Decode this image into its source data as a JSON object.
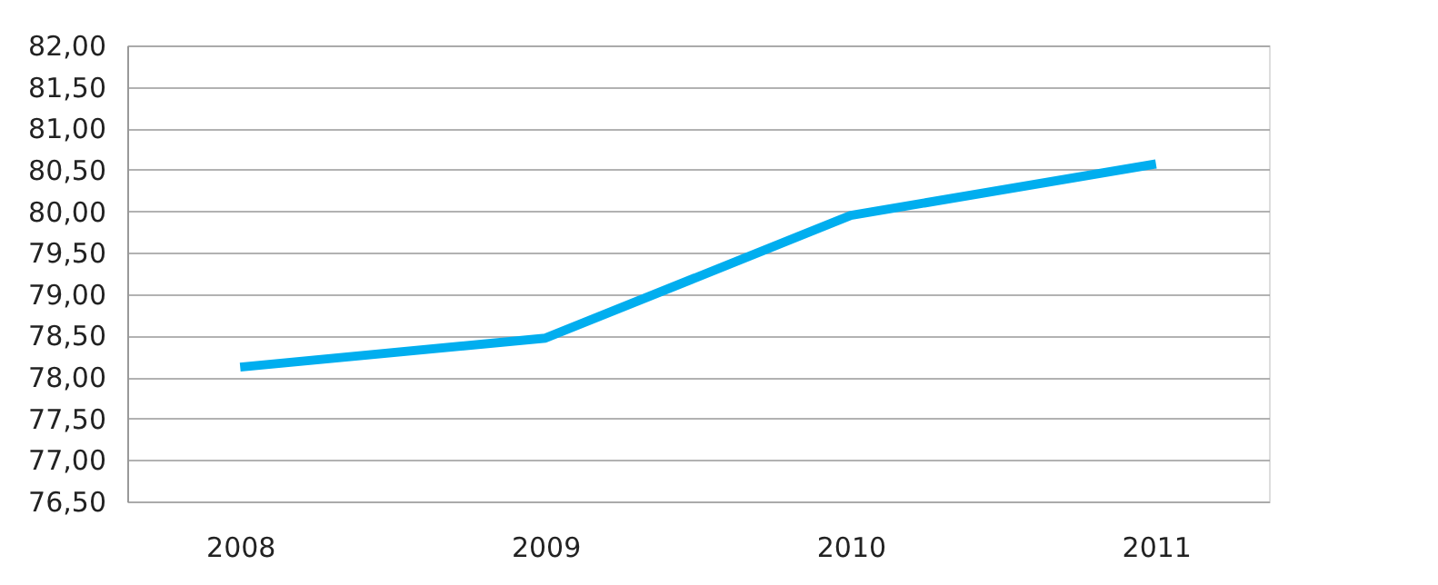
{
  "chart_data": {
    "type": "line",
    "categories": [
      "2008",
      "2009",
      "2010",
      "2011"
    ],
    "series": [
      {
        "color": "#00aeef",
        "values": [
          78.12,
          78.47,
          79.95,
          80.57
        ]
      }
    ],
    "ylim": [
      76.5,
      82
    ],
    "yticks": [
      {
        "value": 76.5,
        "label": "76,50"
      },
      {
        "value": 77,
        "label": "77,00"
      },
      {
        "value": 77.5,
        "label": "77,50"
      },
      {
        "value": 78,
        "label": "78,00"
      },
      {
        "value": 78.5,
        "label": "78,50"
      },
      {
        "value": 79,
        "label": "79,00"
      },
      {
        "value": 79.5,
        "label": "79,50"
      },
      {
        "value": 80,
        "label": "80,00"
      },
      {
        "value": 80.5,
        "label": "80,50"
      },
      {
        "value": 81,
        "label": "81,00"
      },
      {
        "value": 81.5,
        "label": "81,50"
      },
      {
        "value": 82,
        "label": "82,00"
      }
    ],
    "grid": "y",
    "marker": "none",
    "line_style": "solid",
    "legend": false
  }
}
